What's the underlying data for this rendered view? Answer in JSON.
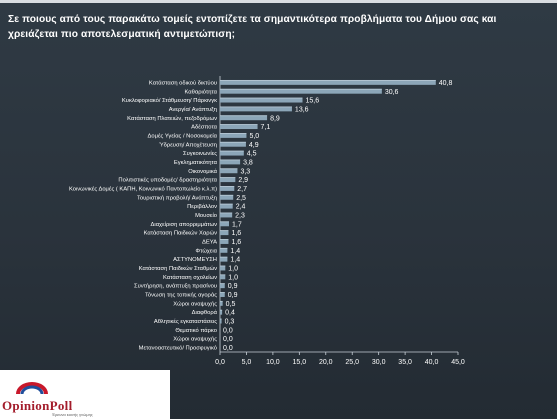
{
  "title": "Σε ποιους από τους παρακάτω τομείς εντοπίζετε τα σημαντικότερα προβλήματα του Δήμου σας και χρειάζεται πιο αποτελεσματική αντιμετώπιση;",
  "logo": {
    "name": "OpinionPoll",
    "tagline": "Έρευνα κοινής γνώμης"
  },
  "colors": {
    "background": "#2c3640",
    "bar": "#8ca6b8",
    "text": "#ffffff"
  },
  "chart_data": {
    "type": "bar",
    "orientation": "horizontal",
    "title": "Σε ποιους από τους παρακάτω τομείς εντοπίζετε τα σημαντικότερα προβλήματα του Δήμου σας και χρειάζεται πιο αποτελεσματική αντιμετώπιση;",
    "categories": [
      "Κατάσταση οδικού δικτύου",
      "Καθαριότητα",
      "Κυκλοφοριακό/ Στάθμευση/ Πάρκινγκ",
      "Ανεργία/ Ανάπτυξη",
      "Κατάσταση Πλατειών, πεζοδρόμων",
      "Αδέσποτα",
      "Δομές Υγείας / Νοσοκομεία",
      "Ύδρευση/ Αποχέτευση",
      "Συγκοινωνίες",
      "Εγκληματικότητα",
      "Οικονομικά",
      "Πολιτιστικές υποδομές/ δραστηριότητα",
      "Κοινωνικές Δομές ( ΚΑΠΗ, Κοινωνικό Παντοπωλείο κ.λ.π)",
      "Τουριστική προβολή/ Ανάπτυξη",
      "Περιβάλλον",
      "Μουσείο",
      "Διαχείριση απορριμμάτων",
      "Κατάσταση Παιδικών Χαρών",
      "ΔΕΥΑ",
      "Φτώχεια",
      "ΑΣΤΥΝΟΜΕΥΣΗ",
      "Κατάσταση Παιδικών Σταθμών",
      "Κατάσταση σχολείων",
      "Συντήρηση, ανάπτυξη πρασίνου",
      "Τόνωση της τοπικής αγοράς",
      "Χώροι αναψυχής",
      "Διαφθορά",
      "Αθλητικές εγκαταστάσεις",
      "Θεματικό πάρκο",
      "Χώροι αναψυχής",
      "Μετανοαστευτικό/ Προσφυγικό"
    ],
    "values": [
      40.8,
      30.6,
      15.6,
      13.6,
      8.9,
      7.1,
      5.0,
      4.9,
      4.5,
      3.8,
      3.3,
      2.9,
      2.7,
      2.5,
      2.4,
      2.3,
      1.7,
      1.6,
      1.6,
      1.4,
      1.4,
      1.0,
      1.0,
      0.9,
      0.9,
      0.5,
      0.4,
      0.3,
      0.0,
      0.0,
      0.0
    ],
    "value_labels": [
      "40,8",
      "30,6",
      "15,6",
      "13,6",
      "8,9",
      "7,1",
      "5,0",
      "4,9",
      "4,5",
      "3,8",
      "3,3",
      "2,9",
      "2,7",
      "2,5",
      "2,4",
      "2,3",
      "1,7",
      "1,6",
      "1,6",
      "1,4",
      "1,4",
      "1,0",
      "1,0",
      "0,9",
      "0,9",
      "0,5",
      "0,4",
      "0,3",
      "0,0",
      "0,0",
      "0,0"
    ],
    "x_ticks": [
      "0,0",
      "5,0",
      "10,0",
      "15,0",
      "20,0",
      "25,0",
      "30,0",
      "35,0",
      "40,0",
      "45,0"
    ],
    "xlim": [
      0,
      45
    ],
    "grid": false,
    "legend": "none"
  }
}
